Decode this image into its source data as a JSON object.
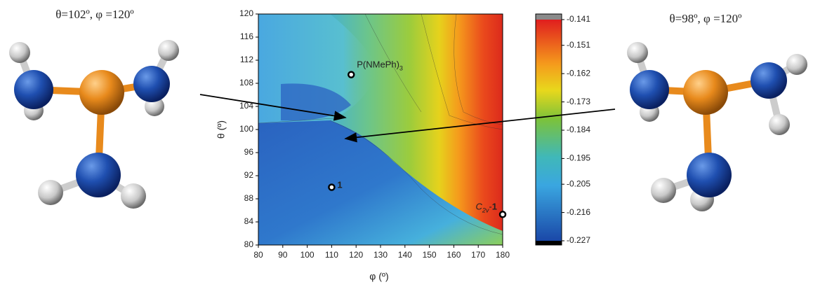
{
  "chart_data": {
    "type": "scatter",
    "xlabel": "φ (º)",
    "ylabel": "θ (º)",
    "xlim": [
      80,
      180
    ],
    "xticks": [
      80,
      90,
      100,
      110,
      120,
      130,
      140,
      150,
      160,
      170,
      180
    ],
    "ylim": [
      80,
      120
    ],
    "yticks": [
      80,
      84,
      88,
      92,
      96,
      100,
      104,
      108,
      112,
      116,
      120
    ],
    "x": [
      118,
      110,
      180
    ],
    "values": [
      109.5,
      90,
      85.3
    ],
    "color": "#000000",
    "point_labels": [
      [
        {
          "text": "P(NMePh)"
        },
        {
          "text": "3",
          "sub": true
        }
      ],
      [
        {
          "text": "1",
          "bold": true
        }
      ],
      [
        {
          "text": "C",
          "italic": true
        },
        {
          "text": "2v",
          "sub": true,
          "italic": true
        },
        {
          "text": "-"
        },
        {
          "text": "1",
          "bold": true
        }
      ]
    ],
    "colorbar": {
      "lim": [
        -0.227,
        -0.141
      ],
      "ticks": [
        -0.141,
        -0.151,
        -0.162,
        -0.173,
        -0.184,
        -0.195,
        -0.205,
        -0.216,
        -0.227
      ]
    }
  },
  "molecules": [
    {
      "caption": "θ=102º, φ =120º"
    },
    {
      "caption": "θ=98º, φ =120º"
    }
  ]
}
